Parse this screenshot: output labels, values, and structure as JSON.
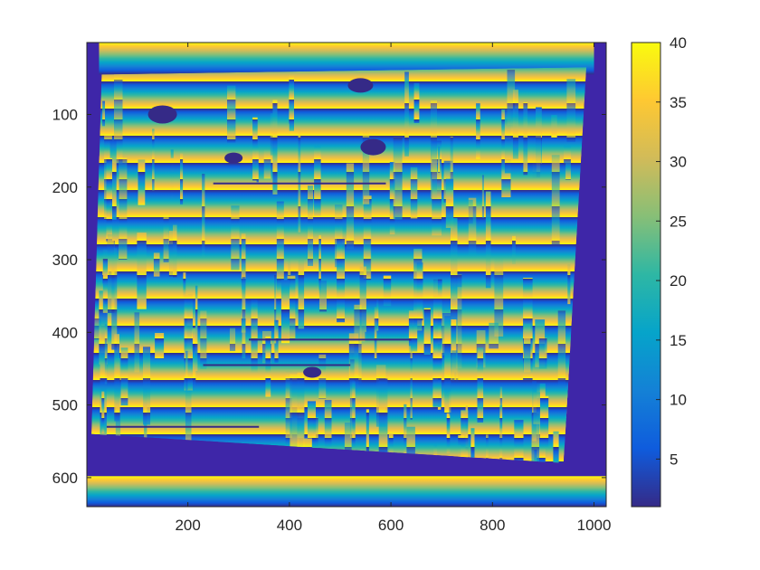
{
  "chart_data": {
    "type": "heatmap",
    "title": "",
    "xlabel": "",
    "ylabel": "",
    "xlim": [
      1,
      1024
    ],
    "ylim": [
      1,
      640
    ],
    "y_direction": "reverse",
    "x_ticks": [
      200,
      400,
      600,
      800,
      1000
    ],
    "x_tick_labels": [
      "200",
      "400",
      "600",
      "800",
      "1000"
    ],
    "y_ticks": [
      100,
      200,
      300,
      400,
      500,
      600
    ],
    "y_tick_labels": [
      "100",
      "200",
      "300",
      "400",
      "500",
      "600"
    ],
    "colorbar": {
      "colormap": "parula",
      "limits": [
        1,
        40
      ],
      "ticks": [
        5,
        10,
        15,
        20,
        25,
        30,
        35,
        40
      ],
      "tick_labels": [
        "5",
        "10",
        "15",
        "20",
        "25",
        "30",
        "35",
        "40"
      ],
      "placement": "right"
    },
    "regions": [
      {
        "name": "background",
        "value": 1
      },
      {
        "name": "top band (striped gradient)",
        "y_range": [
          1,
          45
        ],
        "value_range": [
          1,
          40
        ]
      },
      {
        "name": "bottom band (striped gradient)",
        "y_range": [
          598,
          640
        ],
        "value_range": [
          1,
          40
        ]
      },
      {
        "name": "scene quadrilateral (disparity stripes)",
        "corners_data": [
          [
            30,
            45
          ],
          [
            985,
            35
          ],
          [
            940,
            580
          ],
          [
            10,
            540
          ]
        ],
        "value_range": [
          1,
          40
        ]
      }
    ],
    "grid": false,
    "box": true
  },
  "colors": {
    "parula_stops": [
      "#352a87",
      "#0f5cdd",
      "#1481d6",
      "#06a4ca",
      "#2eb7a4",
      "#87bf77",
      "#d1bb59",
      "#fec832",
      "#f9fb0e"
    ],
    "background_low": "#3e26a8",
    "axis": "#262626"
  }
}
